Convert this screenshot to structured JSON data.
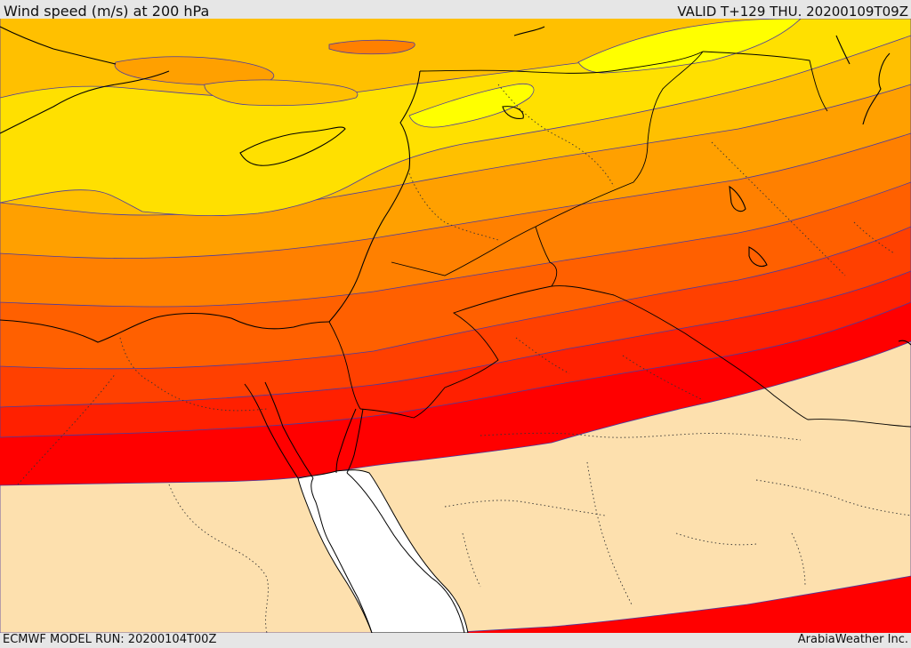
{
  "header": {
    "title": "Wind speed (m/s) at 200 hPa",
    "valid": "VALID T+129 THU. 20200109T09Z"
  },
  "footer": {
    "model_run": "ECMWF MODEL RUN: 20200104T00Z",
    "credit": "ArabiaWeather Inc."
  },
  "map": {
    "field": "wind speed at 200 hPa",
    "fill_colors": {
      "below_threshold_land": "#fde0ae",
      "sea_unfilled": "#ffffff",
      "band_1": "#ff0000",
      "band_2": "#ff2000",
      "band_3": "#ff4000",
      "band_4": "#ff6000",
      "band_5": "#ff8000",
      "band_6": "#ffa000",
      "band_7": "#ffc000",
      "band_8": "#ffe000",
      "band_9": "#ffff00"
    },
    "contour_color": "#4b3aa0",
    "coastline_color": "#000000"
  }
}
